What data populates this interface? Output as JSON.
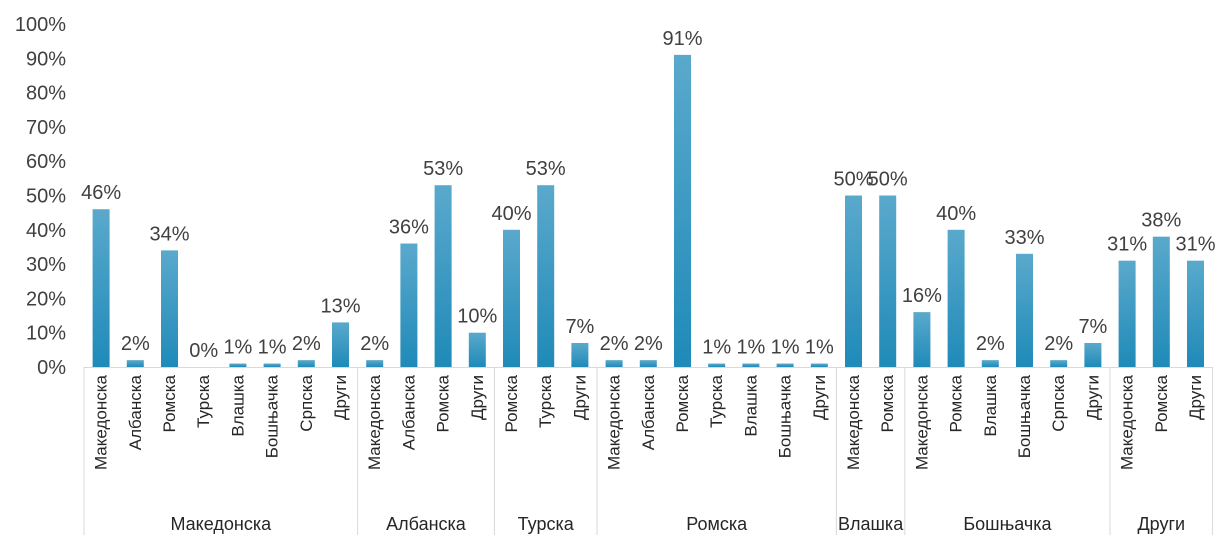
{
  "chart_data": {
    "type": "bar",
    "title": "",
    "xlabel": "",
    "ylabel": "",
    "ylim": [
      0,
      100
    ],
    "y_ticks": [
      "0%",
      "10%",
      "20%",
      "30%",
      "40%",
      "50%",
      "60%",
      "70%",
      "80%",
      "90%",
      "100%"
    ],
    "grid": false,
    "legend": "none",
    "colors": {
      "bar_top": "#5aa9cc",
      "bar_bottom": "#1f8ab8",
      "axis": "#d9d9d9",
      "text": "#404040"
    },
    "groups": [
      {
        "name": "Македонска",
        "items": [
          {
            "category": "Македонска",
            "value": 46,
            "label": "46%"
          },
          {
            "category": "Албанска",
            "value": 2,
            "label": "2%"
          },
          {
            "category": "Ромска",
            "value": 34,
            "label": "34%"
          },
          {
            "category": "Турска",
            "value": 0,
            "label": "0%"
          },
          {
            "category": "Влашка",
            "value": 1,
            "label": "1%"
          },
          {
            "category": "Бошњачка",
            "value": 1,
            "label": "1%"
          },
          {
            "category": "Српска",
            "value": 2,
            "label": "2%"
          },
          {
            "category": "Други",
            "value": 13,
            "label": "13%"
          }
        ]
      },
      {
        "name": "Албанска",
        "items": [
          {
            "category": "Македонска",
            "value": 2,
            "label": "2%"
          },
          {
            "category": "Албанска",
            "value": 36,
            "label": "36%"
          },
          {
            "category": "Ромска",
            "value": 53,
            "label": "53%"
          },
          {
            "category": "Други",
            "value": 10,
            "label": "10%"
          }
        ]
      },
      {
        "name": "Турска",
        "items": [
          {
            "category": "Ромска",
            "value": 40,
            "label": "40%"
          },
          {
            "category": "Турска",
            "value": 53,
            "label": "53%"
          },
          {
            "category": "Други",
            "value": 7,
            "label": "7%"
          }
        ]
      },
      {
        "name": "Ромска",
        "items": [
          {
            "category": "Македонска",
            "value": 2,
            "label": "2%"
          },
          {
            "category": "Албанска",
            "value": 2,
            "label": "2%"
          },
          {
            "category": "Ромска",
            "value": 91,
            "label": "91%"
          },
          {
            "category": "Турска",
            "value": 1,
            "label": "1%"
          },
          {
            "category": "Влашка",
            "value": 1,
            "label": "1%"
          },
          {
            "category": "Бошњачка",
            "value": 1,
            "label": "1%"
          },
          {
            "category": "Други",
            "value": 1,
            "label": "1%"
          }
        ]
      },
      {
        "name": "Влашка",
        "items": [
          {
            "category": "Македонска",
            "value": 50,
            "label": "50%"
          },
          {
            "category": "Ромска",
            "value": 50,
            "label": "50%"
          }
        ]
      },
      {
        "name": "Бошњачка",
        "items": [
          {
            "category": "Македонска",
            "value": 16,
            "label": "16%"
          },
          {
            "category": "Ромска",
            "value": 40,
            "label": "40%"
          },
          {
            "category": "Влашка",
            "value": 2,
            "label": "2%"
          },
          {
            "category": "Бошњачка",
            "value": 33,
            "label": "33%"
          },
          {
            "category": "Српска",
            "value": 2,
            "label": "2%"
          },
          {
            "category": "Други",
            "value": 7,
            "label": "7%"
          }
        ]
      },
      {
        "name": "Други",
        "items": [
          {
            "category": "Македонска",
            "value": 31,
            "label": "31%"
          },
          {
            "category": "Ромска",
            "value": 38,
            "label": "38%"
          },
          {
            "category": "Други",
            "value": 31,
            "label": "31%"
          }
        ]
      }
    ]
  }
}
